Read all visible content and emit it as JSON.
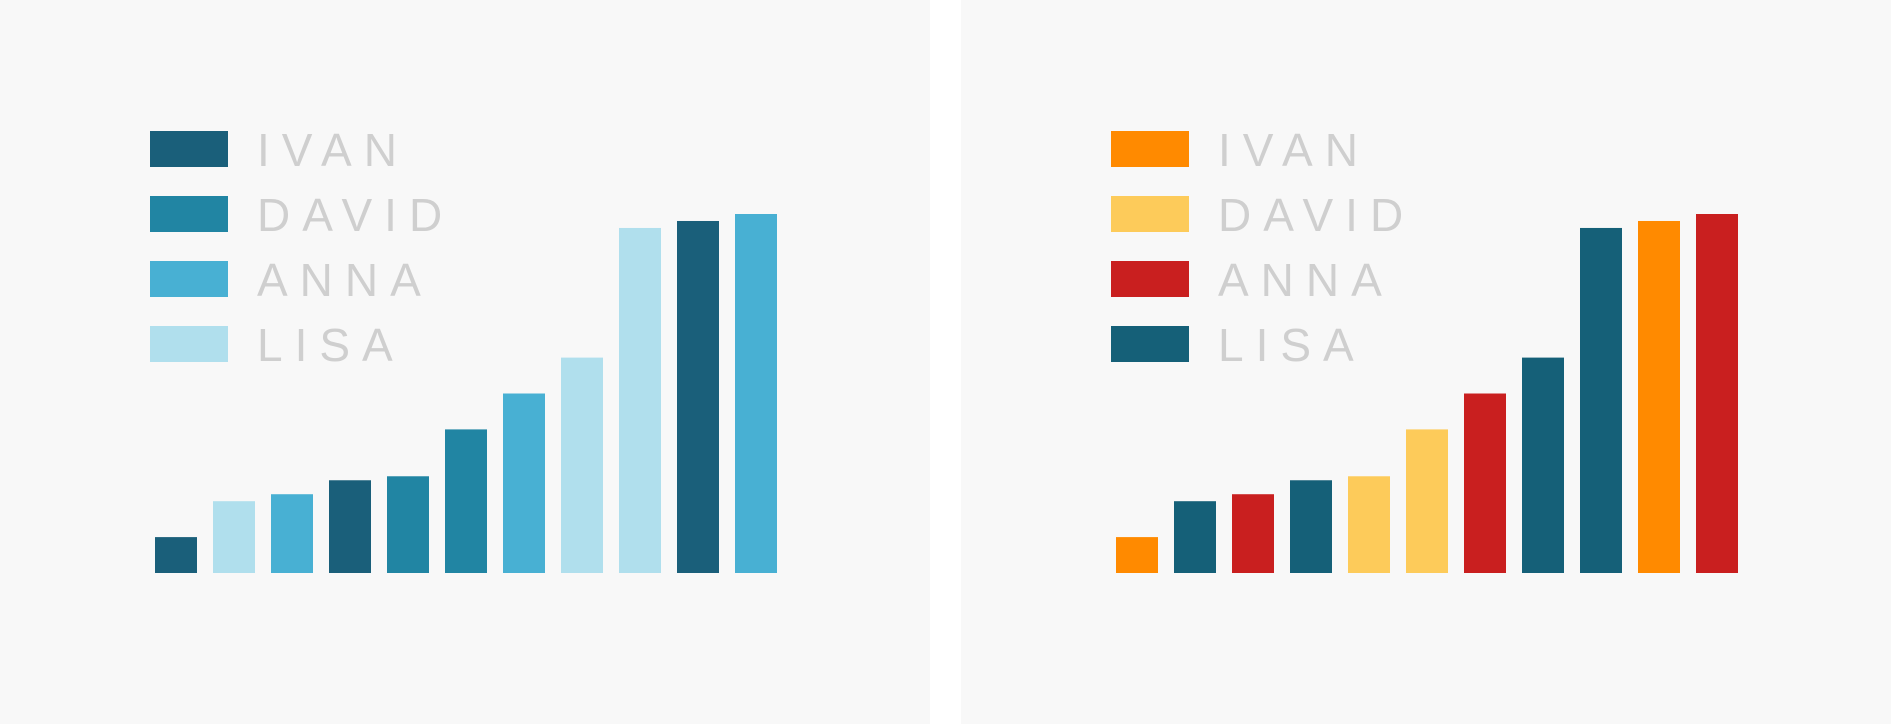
{
  "chart_data": [
    {
      "type": "bar",
      "legend": [
        {
          "label": "IVAN",
          "color": "#1a5f7a"
        },
        {
          "label": "DAVID",
          "color": "#2185a3"
        },
        {
          "label": "ANNA",
          "color": "#48b0d3"
        },
        {
          "label": "LISA",
          "color": "#b0dfed"
        }
      ],
      "values": [
        36,
        72,
        79,
        93,
        97,
        144,
        180,
        216,
        346,
        353,
        360
      ],
      "series_index": [
        0,
        3,
        2,
        0,
        1,
        1,
        2,
        3,
        3,
        0,
        2
      ],
      "ylim": [
        0,
        360
      ],
      "legend_position": "top-left",
      "grid": false
    },
    {
      "type": "bar",
      "legend": [
        {
          "label": "IVAN",
          "color": "#ff8a00"
        },
        {
          "label": "DAVID",
          "color": "#fdcb5a"
        },
        {
          "label": "ANNA",
          "color": "#c91f1f"
        },
        {
          "label": "LISA",
          "color": "#156078"
        }
      ],
      "values": [
        36,
        72,
        79,
        93,
        97,
        144,
        180,
        216,
        346,
        353,
        360
      ],
      "series_index": [
        0,
        3,
        2,
        3,
        1,
        1,
        2,
        3,
        3,
        0,
        2
      ],
      "ylim": [
        0,
        360
      ],
      "legend_position": "top-left",
      "grid": false
    }
  ]
}
